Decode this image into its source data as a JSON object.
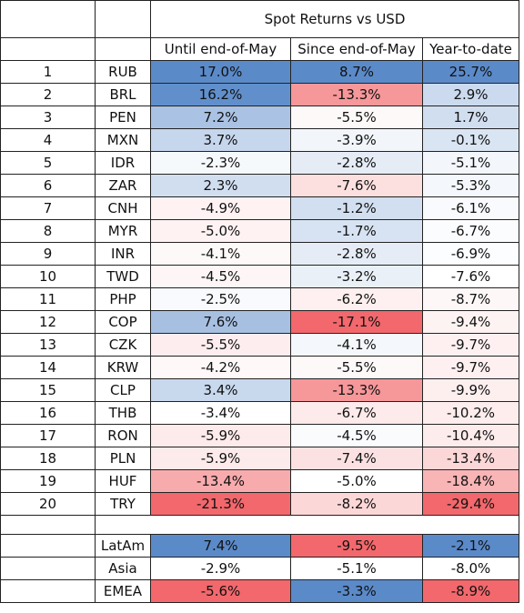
{
  "header": {
    "group_title": "Spot Returns vs USD",
    "columns": [
      "Until end-of-May",
      "Since end-of-May",
      "Year-to-date"
    ]
  },
  "rows": [
    {
      "rank": "1",
      "ccy": "RUB",
      "until": "17.0%",
      "since": "8.7%",
      "ytd": "25.7%"
    },
    {
      "rank": "2",
      "ccy": "BRL",
      "until": "16.2%",
      "since": "-13.3%",
      "ytd": "2.9%"
    },
    {
      "rank": "3",
      "ccy": "PEN",
      "until": "7.2%",
      "since": "-5.5%",
      "ytd": "1.7%"
    },
    {
      "rank": "4",
      "ccy": "MXN",
      "until": "3.7%",
      "since": "-3.9%",
      "ytd": "-0.1%"
    },
    {
      "rank": "5",
      "ccy": "IDR",
      "until": "-2.3%",
      "since": "-2.8%",
      "ytd": "-5.1%"
    },
    {
      "rank": "6",
      "ccy": "ZAR",
      "until": "2.3%",
      "since": "-7.6%",
      "ytd": "-5.3%"
    },
    {
      "rank": "7",
      "ccy": "CNH",
      "until": "-4.9%",
      "since": "-1.2%",
      "ytd": "-6.1%"
    },
    {
      "rank": "8",
      "ccy": "MYR",
      "until": "-5.0%",
      "since": "-1.7%",
      "ytd": "-6.7%"
    },
    {
      "rank": "9",
      "ccy": "INR",
      "until": "-4.1%",
      "since": "-2.8%",
      "ytd": "-6.9%"
    },
    {
      "rank": "10",
      "ccy": "TWD",
      "until": "-4.5%",
      "since": "-3.2%",
      "ytd": "-7.6%"
    },
    {
      "rank": "11",
      "ccy": "PHP",
      "until": "-2.5%",
      "since": "-6.2%",
      "ytd": "-8.7%"
    },
    {
      "rank": "12",
      "ccy": "COP",
      "until": "7.6%",
      "since": "-17.1%",
      "ytd": "-9.4%"
    },
    {
      "rank": "13",
      "ccy": "CZK",
      "until": "-5.5%",
      "since": "-4.1%",
      "ytd": "-9.7%"
    },
    {
      "rank": "14",
      "ccy": "KRW",
      "until": "-4.2%",
      "since": "-5.5%",
      "ytd": "-9.7%"
    },
    {
      "rank": "15",
      "ccy": "CLP",
      "until": "3.4%",
      "since": "-13.3%",
      "ytd": "-9.9%"
    },
    {
      "rank": "16",
      "ccy": "THB",
      "until": "-3.4%",
      "since": "-6.7%",
      "ytd": "-10.2%"
    },
    {
      "rank": "17",
      "ccy": "RON",
      "until": "-5.9%",
      "since": "-4.5%",
      "ytd": "-10.4%"
    },
    {
      "rank": "18",
      "ccy": "PLN",
      "until": "-5.9%",
      "since": "-7.4%",
      "ytd": "-13.4%"
    },
    {
      "rank": "19",
      "ccy": "HUF",
      "until": "-13.4%",
      "since": "-5.0%",
      "ytd": "-18.4%"
    },
    {
      "rank": "20",
      "ccy": "TRY",
      "until": "-21.3%",
      "since": "-8.2%",
      "ytd": "-29.4%"
    }
  ],
  "regions": [
    {
      "name": "LatAm",
      "until": "7.4%",
      "since": "-9.5%",
      "ytd": "-2.1%"
    },
    {
      "name": "Asia",
      "until": "-2.9%",
      "since": "-5.1%",
      "ytd": "-8.0%"
    },
    {
      "name": "EMEA",
      "until": "-5.6%",
      "since": "-3.3%",
      "ytd": "-8.9%"
    }
  ]
}
